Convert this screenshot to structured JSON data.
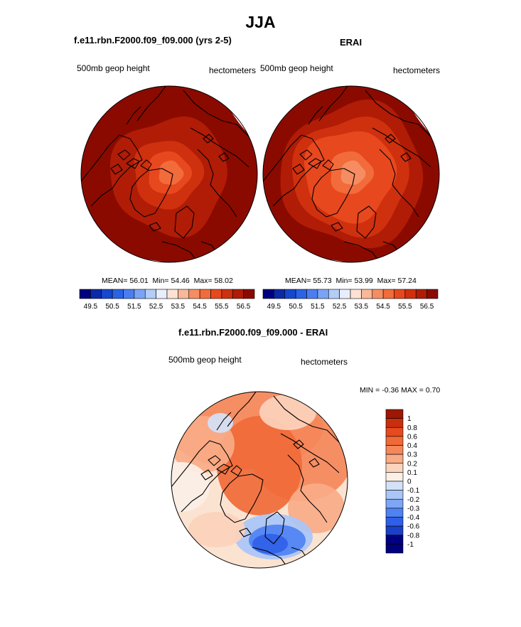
{
  "page": {
    "title": "JJA"
  },
  "chart_data": [
    {
      "type": "heatmap",
      "projection": "north-polar-stereographic",
      "title": "f.e11.rbn.F2000.f09_f09.000 (yrs 2-5)",
      "left_label": "500mb geop height",
      "right_label": "hectometers",
      "stats": {
        "mean_label": "MEAN=",
        "mean": "56.01",
        "min_label": "Min=",
        "min": "54.46",
        "max_label": "Max=",
        "max": "58.02"
      },
      "colorbar": {
        "orientation": "horizontal",
        "tick_labels": [
          "49.5",
          "50.5",
          "51.5",
          "52.5",
          "53.5",
          "54.5",
          "55.5",
          "56.5"
        ],
        "levels": [
          49.5,
          50,
          50.5,
          51,
          51.5,
          52,
          52.5,
          53,
          53.5,
          54,
          54.5,
          55,
          55.5,
          56,
          56.5
        ]
      },
      "field": {
        "pole_value": 54.5,
        "edge_value": 57.8
      }
    },
    {
      "type": "heatmap",
      "projection": "north-polar-stereographic",
      "title": "ERAI",
      "left_label": "500mb geop height",
      "right_label": "hectometers",
      "stats": {
        "mean_label": "MEAN=",
        "mean": "55.73",
        "min_label": "Min=",
        "min": "53.99",
        "max_label": "Max=",
        "max": "57.24"
      },
      "colorbar": {
        "orientation": "horizontal",
        "tick_labels": [
          "49.5",
          "50.5",
          "51.5",
          "52.5",
          "53.5",
          "54.5",
          "55.5",
          "56.5"
        ],
        "levels": [
          49.5,
          50,
          50.5,
          51,
          51.5,
          52,
          52.5,
          53,
          53.5,
          54,
          54.5,
          55,
          55.5,
          56,
          56.5
        ]
      },
      "field": {
        "pole_value": 54.0,
        "edge_value": 57.1
      }
    },
    {
      "type": "heatmap",
      "projection": "north-polar-stereographic",
      "title": "f.e11.rbn.F2000.f09_f09.000 - ERAI",
      "left_label": "500mb geop height",
      "right_label": "hectometers",
      "stats": {
        "min_label": "MIN =",
        "min": "-0.36",
        "max_label": "MAX =",
        "max": "0.70"
      },
      "colorbar": {
        "orientation": "vertical",
        "tick_labels": [
          "1",
          "0.8",
          "0.6",
          "0.4",
          "0.3",
          "0.2",
          "0.1",
          "0",
          "-0.1",
          "-0.2",
          "-0.3",
          "-0.4",
          "-0.6",
          "-0.8",
          "-1"
        ]
      }
    }
  ],
  "colors": {
    "seq": [
      "#00007f",
      "#0a2aa8",
      "#1548cf",
      "#2b63e6",
      "#4a7ef0",
      "#7ba3f5",
      "#b2cdf7",
      "#e8eefb",
      "#fde2d4",
      "#f9b898",
      "#f68d62",
      "#f26b3b",
      "#e8481e",
      "#cf300e",
      "#b01c06",
      "#8b0a00"
    ],
    "outline": "#000000"
  }
}
